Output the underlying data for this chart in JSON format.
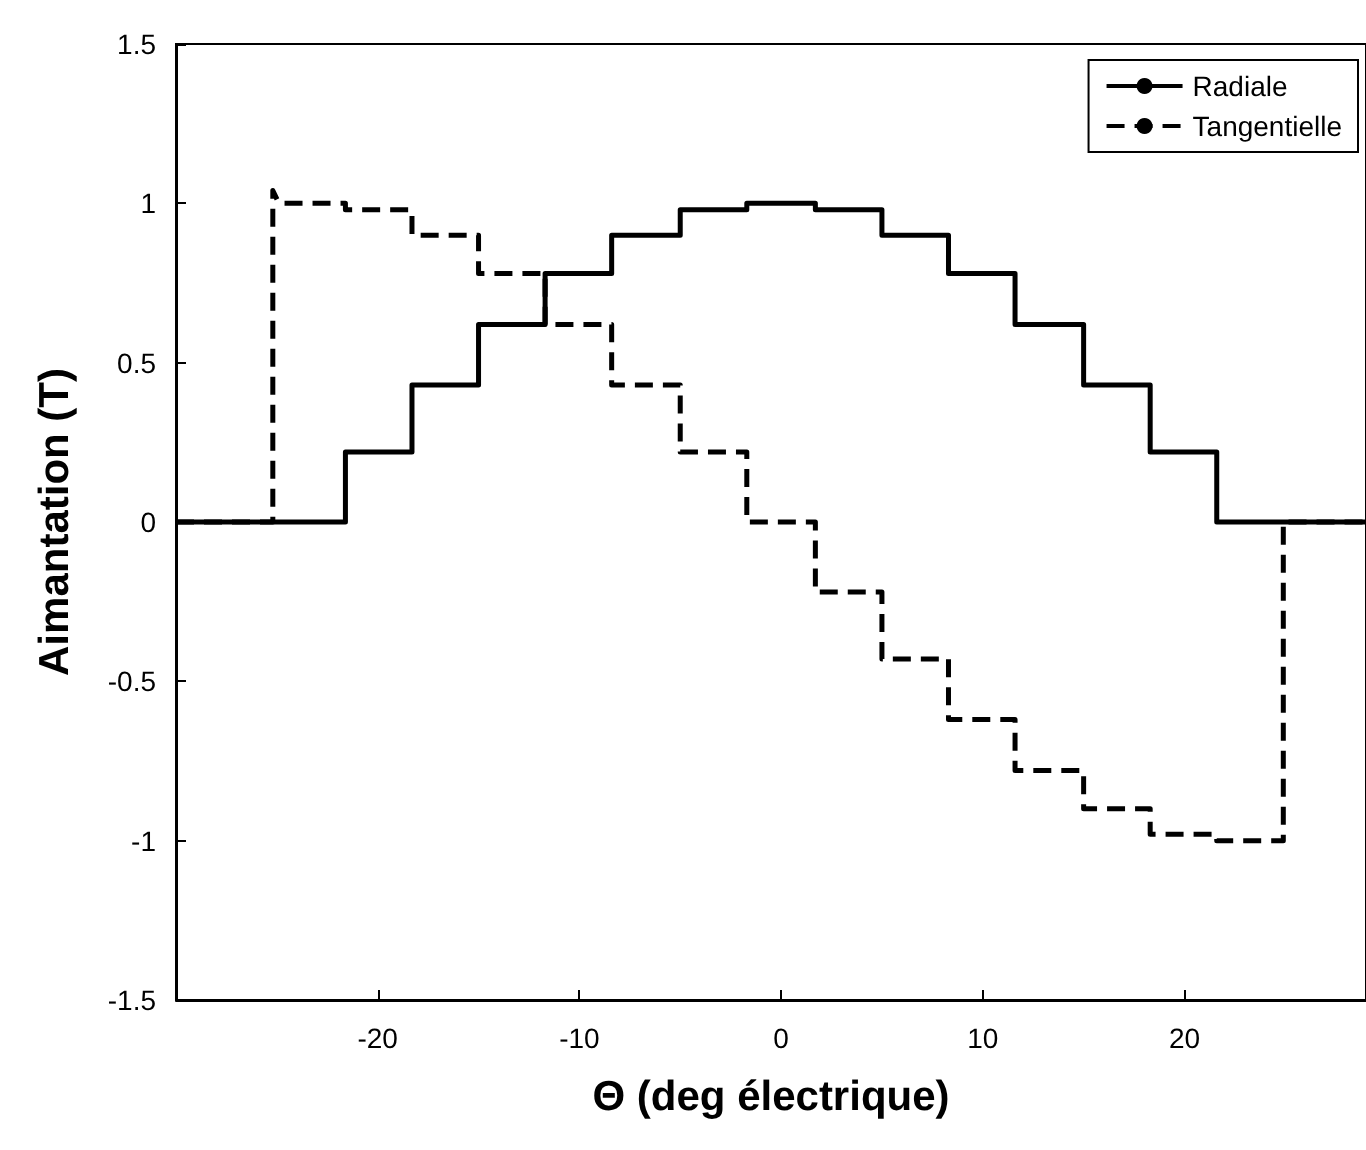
{
  "chart_data": {
    "type": "line",
    "xlabel": "Θ (deg électrique)",
    "ylabel": "Aimantation (T)",
    "xlim": [
      -30,
      29
    ],
    "xticks": [
      -20,
      -10,
      0,
      10,
      20
    ],
    "ylim": [
      -1.5,
      1.5
    ],
    "yticks": [
      -1.5,
      -1,
      -0.5,
      0,
      0.5,
      1,
      1.5
    ],
    "grid": false,
    "legend": "top right",
    "marker": "none",
    "series": [
      {
        "name": "Radiale",
        "color": "#000000",
        "line_style": "solid",
        "x": [
          -30,
          -21.6,
          -21.6,
          -18.3,
          -18.3,
          -15,
          -15,
          -11.7,
          -11.7,
          -8.4,
          -8.4,
          -5,
          -5,
          -1.7,
          -1.7,
          1.7,
          1.7,
          5,
          5,
          8.3,
          8.3,
          11.6,
          11.6,
          15,
          15,
          18.3,
          18.3,
          21.6,
          21.6,
          29
        ],
        "values": [
          0,
          0,
          0.22,
          0.22,
          0.43,
          0.43,
          0.62,
          0.62,
          0.78,
          0.78,
          0.9,
          0.9,
          0.98,
          0.98,
          1,
          1,
          0.98,
          0.98,
          0.9,
          0.9,
          0.78,
          0.78,
          0.62,
          0.62,
          0.43,
          0.43,
          0.22,
          0.22,
          0,
          0
        ]
      },
      {
        "name": "Tangentielle",
        "color": "#000000",
        "line_style": "dashed",
        "x": [
          -30,
          -25.2,
          -25.2,
          -24.9,
          -21.6,
          -21.6,
          -18.3,
          -18.3,
          -15,
          -15,
          -11.7,
          -11.7,
          -8.4,
          -8.4,
          -5,
          -5,
          -1.7,
          -1.7,
          1.7,
          1.7,
          5,
          5,
          8.3,
          8.3,
          11.6,
          11.6,
          15,
          15,
          18.3,
          18.3,
          21.6,
          21.6,
          24.9,
          24.9,
          29
        ],
        "values": [
          0,
          0,
          1.04,
          1,
          1,
          0.98,
          0.98,
          0.9,
          0.9,
          0.78,
          0.78,
          0.62,
          0.62,
          0.43,
          0.43,
          0.22,
          0.22,
          0,
          0,
          -0.22,
          -0.22,
          -0.43,
          -0.43,
          -0.62,
          -0.62,
          -0.78,
          -0.78,
          -0.9,
          -0.9,
          -0.98,
          -0.98,
          -1,
          -1,
          0,
          0
        ]
      }
    ]
  }
}
